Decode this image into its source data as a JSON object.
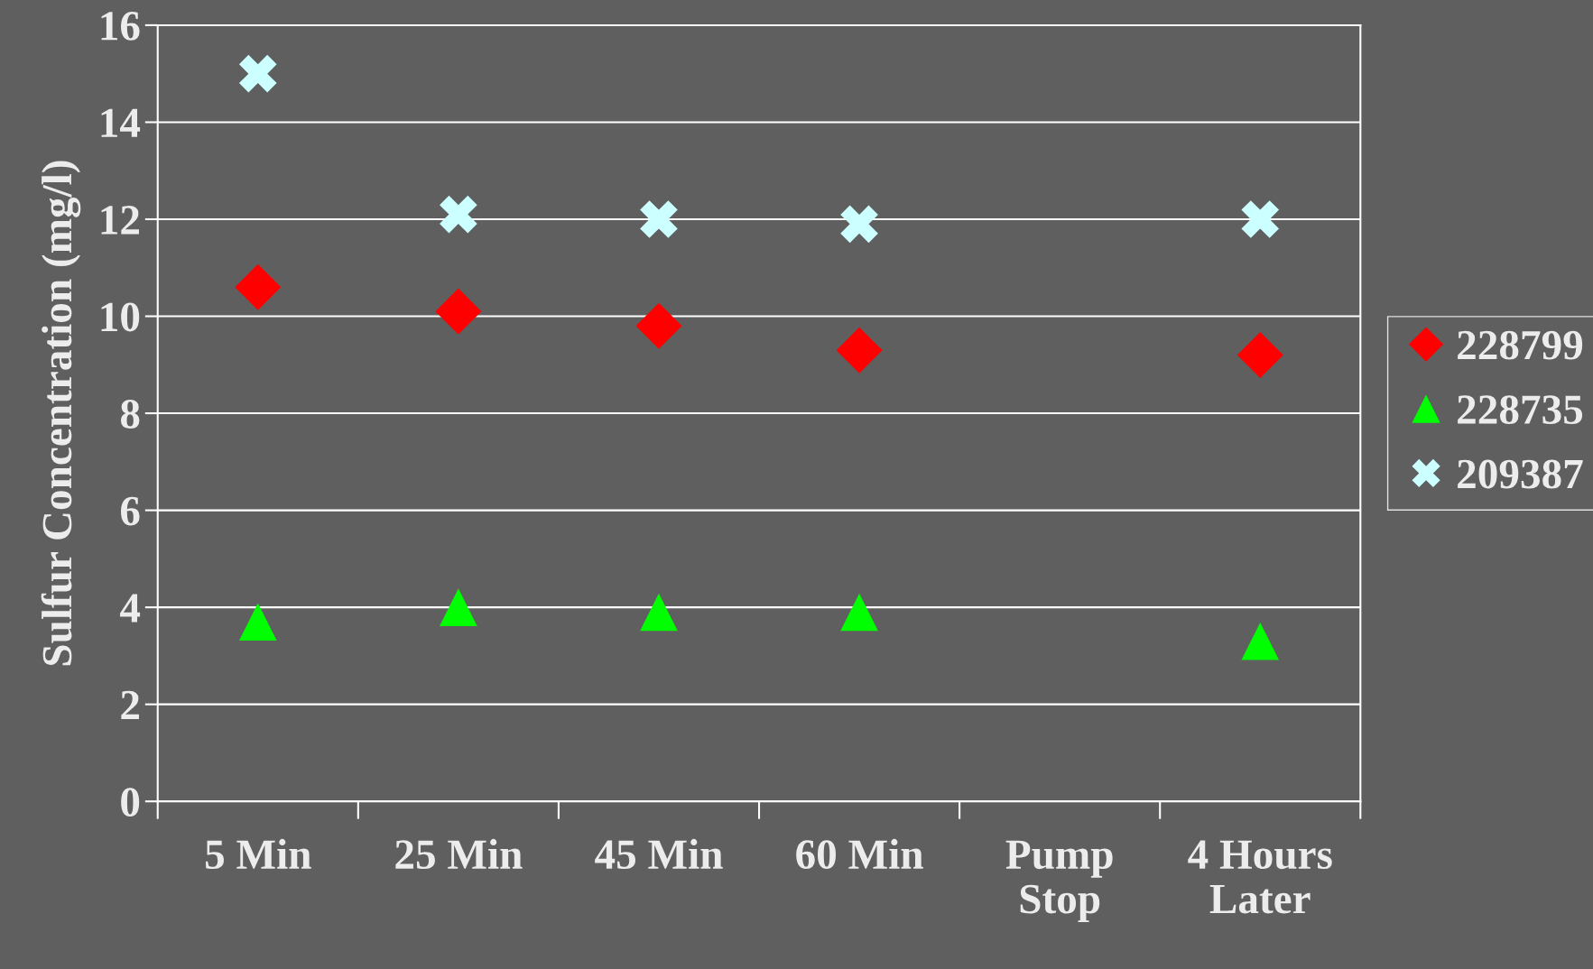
{
  "chart_data": {
    "type": "scatter",
    "ylabel": "Sulfur Concentration (mg/l)",
    "categories": [
      "5 Min",
      "25 Min",
      "45 Min",
      "60 Min",
      "Pump\nStop",
      "4 Hours\nLater"
    ],
    "series": [
      {
        "name": "228799",
        "color": "#ff0000",
        "marker": "diamond",
        "values": [
          10.6,
          10.1,
          9.8,
          9.3,
          null,
          9.2
        ]
      },
      {
        "name": "228735",
        "color": "#00ff00",
        "marker": "triangle",
        "values": [
          3.7,
          4.0,
          3.9,
          3.9,
          null,
          3.3
        ]
      },
      {
        "name": "209387",
        "color": "#ccffff",
        "marker": "cross",
        "values": [
          15.0,
          12.1,
          12.0,
          11.9,
          null,
          12.0
        ]
      }
    ],
    "ylim": [
      0,
      16
    ],
    "yticks": [
      0,
      2,
      4,
      6,
      8,
      10,
      12,
      14,
      16
    ],
    "grid": "y",
    "legend": "right"
  }
}
